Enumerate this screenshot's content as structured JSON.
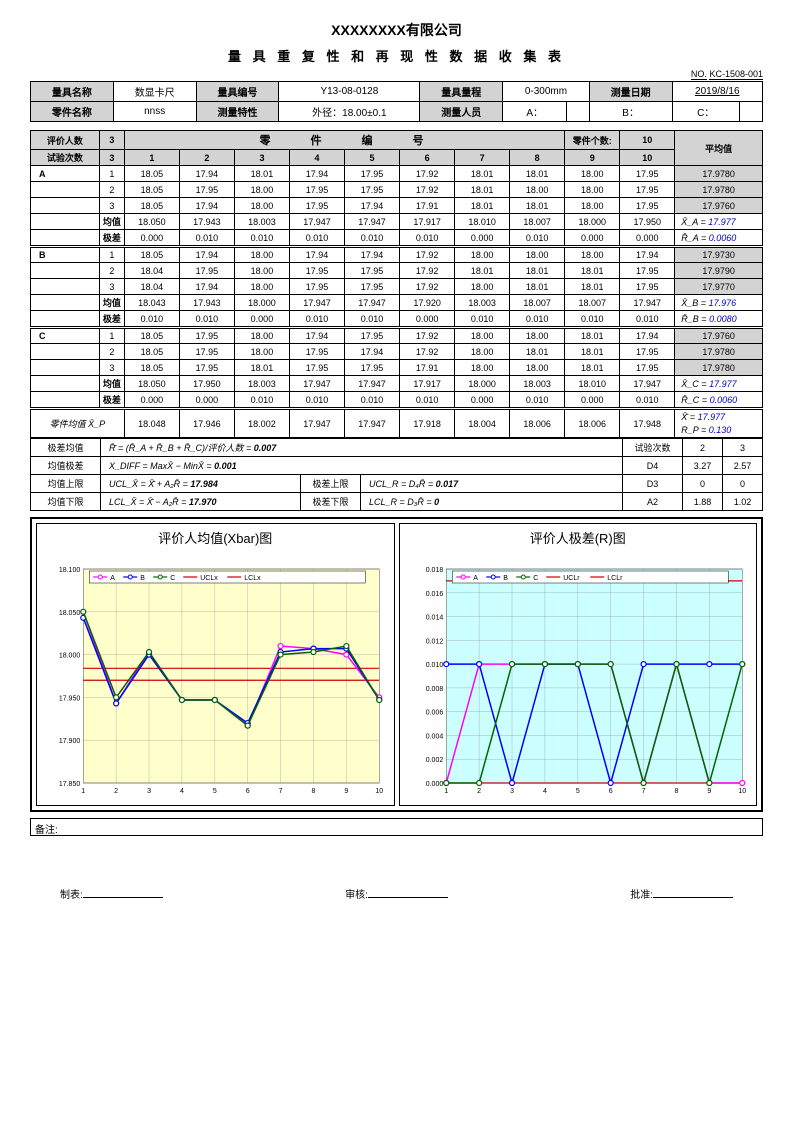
{
  "company": "XXXXXXXX有限公司",
  "formtitle": "量 具 重 复 性 和 再 现 性 数 据 收 集 表",
  "docno_lbl": "NO.",
  "docno": "KC-1508-001",
  "header": {
    "tool_name_lbl": "量具名称",
    "tool_name": "数显卡尺",
    "tool_no_lbl": "量具编号",
    "tool_no": "Y13-08-0128",
    "range_lbl": "量具量程",
    "range": "0-300mm",
    "date_lbl": "测量日期",
    "date": "2019/8/16",
    "part_name_lbl": "零件名称",
    "part_name": "nnss",
    "char_lbl": "测量特性",
    "char": "外径：18.00±0.1",
    "people_lbl": "测量人员",
    "pA": "A：",
    "pB": "B：",
    "pC": "C："
  },
  "evaln_lbl": "评价人数",
  "evaln": "3",
  "trials_lbl": "试验次数",
  "trials": "3",
  "partno_lbl": "零　　件　　编　　号",
  "partcnt_lbl": "零件个数:",
  "partcnt": "10",
  "avg_lbl": "平均值",
  "cols": [
    "1",
    "2",
    "3",
    "4",
    "5",
    "6",
    "7",
    "8",
    "9",
    "10"
  ],
  "A": {
    "r1": [
      "18.05",
      "17.94",
      "18.01",
      "17.94",
      "17.95",
      "17.92",
      "18.01",
      "18.01",
      "18.00",
      "17.95"
    ],
    "r2": [
      "18.05",
      "17.95",
      "18.00",
      "17.95",
      "17.95",
      "17.92",
      "18.01",
      "18.00",
      "18.00",
      "17.95"
    ],
    "r3": [
      "18.05",
      "17.94",
      "18.00",
      "17.95",
      "17.94",
      "17.91",
      "18.01",
      "18.01",
      "18.00",
      "17.95"
    ],
    "avg": [
      "18.050",
      "17.943",
      "18.003",
      "17.947",
      "17.947",
      "17.917",
      "18.010",
      "18.007",
      "18.000",
      "17.950"
    ],
    "rng": [
      "0.000",
      "0.010",
      "0.010",
      "0.010",
      "0.010",
      "0.010",
      "0.000",
      "0.010",
      "0.000",
      "0.000"
    ],
    "ravg": [
      "17.9780",
      "17.9780",
      "17.9760"
    ],
    "xbar_lbl": "X̄_A =",
    "xbar": "17.977",
    "rbar_lbl": "R̄_A =",
    "rbar": "0.0060"
  },
  "B": {
    "r1": [
      "18.05",
      "17.94",
      "18.00",
      "17.94",
      "17.94",
      "17.92",
      "18.00",
      "18.00",
      "18.00",
      "17.94"
    ],
    "r2": [
      "18.04",
      "17.95",
      "18.00",
      "17.95",
      "17.95",
      "17.92",
      "18.01",
      "18.01",
      "18.01",
      "17.95"
    ],
    "r3": [
      "18.04",
      "17.94",
      "18.00",
      "17.95",
      "17.95",
      "17.92",
      "18.00",
      "18.01",
      "18.01",
      "17.95"
    ],
    "avg": [
      "18.043",
      "17.943",
      "18.000",
      "17.947",
      "17.947",
      "17.920",
      "18.003",
      "18.007",
      "18.007",
      "17.947"
    ],
    "rng": [
      "0.010",
      "0.010",
      "0.000",
      "0.010",
      "0.010",
      "0.000",
      "0.010",
      "0.010",
      "0.010",
      "0.010"
    ],
    "ravg": [
      "17.9730",
      "17.9790",
      "17.9770"
    ],
    "xbar_lbl": "X̄_B =",
    "xbar": "17.976",
    "rbar_lbl": "R̄_B =",
    "rbar": "0.0080"
  },
  "C": {
    "r1": [
      "18.05",
      "17.95",
      "18.00",
      "17.94",
      "17.95",
      "17.92",
      "18.00",
      "18.00",
      "18.01",
      "17.94"
    ],
    "r2": [
      "18.05",
      "17.95",
      "18.00",
      "17.95",
      "17.94",
      "17.92",
      "18.00",
      "18.01",
      "18.01",
      "17.95"
    ],
    "r3": [
      "18.05",
      "17.95",
      "18.01",
      "17.95",
      "17.95",
      "17.91",
      "18.00",
      "18.00",
      "18.01",
      "17.95"
    ],
    "avg": [
      "18.050",
      "17.950",
      "18.003",
      "17.947",
      "17.947",
      "17.917",
      "18.000",
      "18.003",
      "18.010",
      "17.947"
    ],
    "rng": [
      "0.000",
      "0.000",
      "0.010",
      "0.010",
      "0.010",
      "0.010",
      "0.000",
      "0.010",
      "0.000",
      "0.010"
    ],
    "ravg": [
      "17.9760",
      "17.9780",
      "17.9780"
    ],
    "xbar_lbl": "X̄_C =",
    "xbar": "17.977",
    "rbar_lbl": "R̄_C =",
    "rbar": "0.0060"
  },
  "partavg_lbl": "零件均值 X̄_P",
  "partavg": [
    "18.048",
    "17.946",
    "18.002",
    "17.947",
    "17.947",
    "17.918",
    "18.004",
    "18.006",
    "18.006",
    "17.948"
  ],
  "xbb_lbl": "X̄̄ =",
  "xbb": "17.977",
  "rp_lbl": "R_P =",
  "rp": "0.130",
  "mean_lbl": "均值",
  "range_lbl2": "极差",
  "calc": {
    "rbar_lbl": "极差均值",
    "rbar_form": "R̄̄ = (R̄_A + R̄_B + R̄_C)/评价人数 =",
    "rbar": "0.007",
    "xdiff_lbl": "均值极差",
    "xdiff_form": "X_DIFF = MaxX̄ − MinX̄ =",
    "xdiff": "0.001",
    "uclx_lbl": "均值上限",
    "uclx_form": "UCL_X̄ = X̄̄ + A₂R̄ =",
    "uclx": "17.984",
    "lclx_lbl": "均值下限",
    "lclx_form": "LCL_X̄ = X̄̄ − A₂R̄ =",
    "lclx": "17.970",
    "uclr_lbl": "极差上限",
    "uclr_form": "UCL_R = D₄R̄ =",
    "uclr": "0.017",
    "lclr_lbl": "极差下限",
    "lclr_form": "LCL_R = D₃R̄ =",
    "lclr": "0",
    "trialn_lbl": "试验次数",
    "t2": "2",
    "t3": "3",
    "d4_lbl": "D4",
    "d4_2": "3.27",
    "d4_3": "2.57",
    "d3_lbl": "D3",
    "d3_2": "0",
    "d3_3": "0",
    "a2_lbl": "A2",
    "a2_2": "1.88",
    "a2_3": "1.02"
  },
  "chart1": {
    "title": "评价人均值(Xbar)图",
    "ylim": [
      17.85,
      18.1
    ],
    "yticks": [
      "17.850",
      "17.900",
      "17.950",
      "18.000",
      "18.050",
      "18.100"
    ],
    "xticks": [
      "1",
      "2",
      "3",
      "4",
      "5",
      "6",
      "7",
      "8",
      "9",
      "10"
    ],
    "A": [
      18.05,
      17.943,
      18.003,
      17.947,
      17.947,
      17.917,
      18.01,
      18.007,
      18.0,
      17.95
    ],
    "B": [
      18.043,
      17.943,
      18.0,
      17.947,
      17.947,
      17.92,
      18.003,
      18.007,
      18.007,
      17.947
    ],
    "C": [
      18.05,
      17.95,
      18.003,
      17.947,
      17.947,
      17.917,
      18.0,
      18.003,
      18.01,
      17.947
    ],
    "ucl": 17.984,
    "lcl": 17.97,
    "colors": {
      "A": "#ff00ff",
      "B": "#0000ff",
      "C": "#006600",
      "ucl": "#cc0000",
      "lcl": "#cc0000",
      "bg": "#ffffcc"
    },
    "legend": [
      "A",
      "B",
      "C",
      "UCLx",
      "LCLx"
    ]
  },
  "chart2": {
    "title": "评价人极差(R)图",
    "ylim": [
      0,
      0.018
    ],
    "yticks": [
      "0.000",
      "0.002",
      "0.004",
      "0.006",
      "0.008",
      "0.010",
      "0.012",
      "0.014",
      "0.016",
      "0.018"
    ],
    "xticks": [
      "1",
      "2",
      "3",
      "4",
      "5",
      "6",
      "7",
      "8",
      "9",
      "10"
    ],
    "A": [
      0.0,
      0.01,
      0.01,
      0.01,
      0.01,
      0.01,
      0.0,
      0.01,
      0.0,
      0.0
    ],
    "B": [
      0.01,
      0.01,
      0.0,
      0.01,
      0.01,
      0.0,
      0.01,
      0.01,
      0.01,
      0.01
    ],
    "C": [
      0.0,
      0.0,
      0.01,
      0.01,
      0.01,
      0.01,
      0.0,
      0.01,
      0.0,
      0.01
    ],
    "ucl": 0.017,
    "lcl": 0,
    "colors": {
      "A": "#ff00ff",
      "B": "#0000ff",
      "C": "#006600",
      "ucl": "#cc0000",
      "lcl": "#cc0000",
      "bg": "#ccffff"
    },
    "legend": [
      "A",
      "B",
      "C",
      "UCLr",
      "LCLr"
    ]
  },
  "notes_lbl": "备注:",
  "sig": {
    "make": "制表:",
    "check": "审核:",
    "approve": "批准:"
  }
}
